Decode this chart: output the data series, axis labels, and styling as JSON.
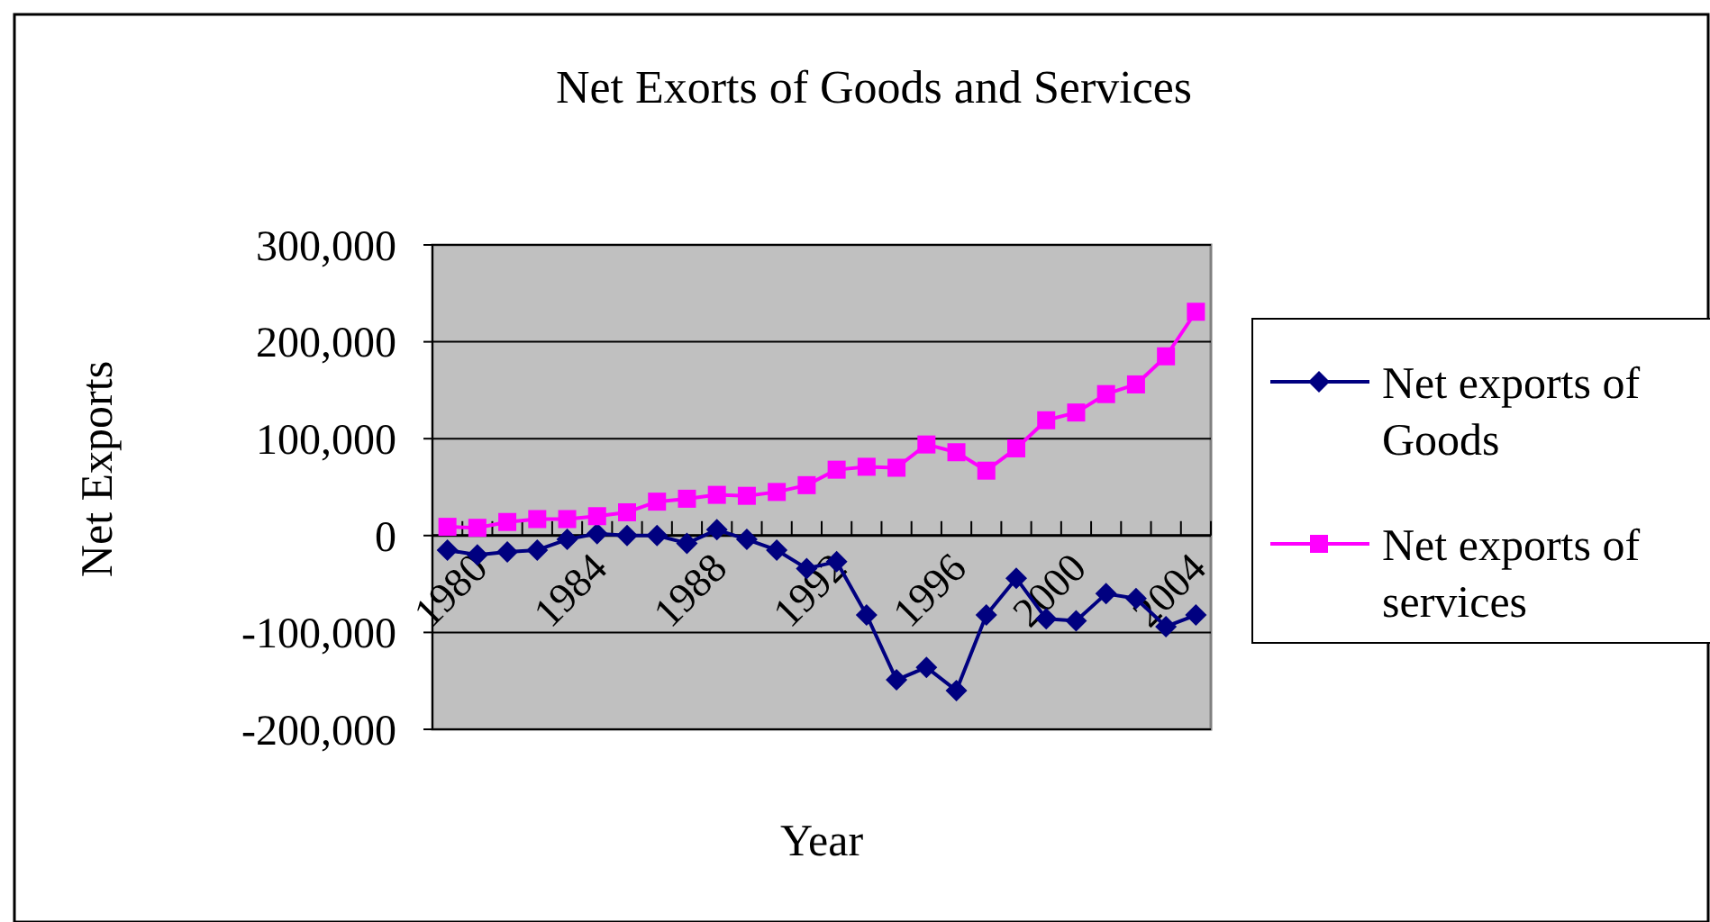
{
  "chart_data": {
    "type": "line",
    "title": "Net Exorts of Goods and Services",
    "xlabel": "Year",
    "ylabel": "Net Exports",
    "categories": [
      "1980",
      null,
      null,
      null,
      "1984",
      null,
      null,
      null,
      "1988",
      null,
      null,
      null,
      "1992",
      null,
      null,
      null,
      "1996",
      null,
      null,
      null,
      "2000",
      null,
      null,
      null,
      "2004",
      null
    ],
    "series": [
      {
        "name": "Net exports of Goods",
        "color": "#000080",
        "marker": "diamond",
        "values": [
          -15000,
          -20000,
          -17000,
          -15000,
          -4000,
          2000,
          0,
          0,
          -8000,
          6000,
          -4000,
          -15000,
          -34000,
          -27000,
          -82000,
          -149000,
          -136000,
          -160000,
          -82000,
          -44000,
          -86000,
          -88000,
          -60000,
          -65000,
          -94000,
          -82000
        ]
      },
      {
        "name": "Net exports of services",
        "color": "#ff00ff",
        "marker": "square",
        "values": [
          9000,
          8000,
          14000,
          17000,
          17000,
          20000,
          24000,
          35000,
          38000,
          42000,
          41000,
          45000,
          52000,
          68000,
          71000,
          70000,
          94000,
          86000,
          67000,
          90000,
          119000,
          127000,
          146000,
          156000,
          185000,
          231000
        ]
      }
    ],
    "ylim": [
      -200000,
      300000
    ],
    "yticks": [
      {
        "value": -200000,
        "label": "-200,000"
      },
      {
        "value": -100000,
        "label": "-100,000"
      },
      {
        "value": 0,
        "label": "0"
      },
      {
        "value": 100000,
        "label": "100,000"
      },
      {
        "value": 200000,
        "label": "200,000"
      },
      {
        "value": 300000,
        "label": "300,000"
      }
    ],
    "grid": "y",
    "legend": "right"
  }
}
